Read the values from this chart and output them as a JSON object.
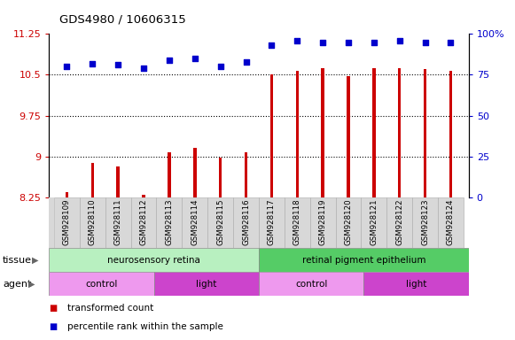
{
  "title": "GDS4980 / 10606315",
  "samples": [
    "GSM928109",
    "GSM928110",
    "GSM928111",
    "GSM928112",
    "GSM928113",
    "GSM928114",
    "GSM928115",
    "GSM928116",
    "GSM928117",
    "GSM928118",
    "GSM928119",
    "GSM928120",
    "GSM928121",
    "GSM928122",
    "GSM928123",
    "GSM928124"
  ],
  "bar_values": [
    8.35,
    8.88,
    8.82,
    8.3,
    9.07,
    9.15,
    8.97,
    9.07,
    10.5,
    10.58,
    10.62,
    10.47,
    10.62,
    10.62,
    10.6,
    10.57
  ],
  "dot_values": [
    80,
    82,
    81,
    79,
    84,
    85,
    80,
    83,
    93,
    96,
    95,
    95,
    95,
    96,
    95,
    95
  ],
  "bar_color": "#cc0000",
  "dot_color": "#0000cc",
  "ylim_left": [
    8.25,
    11.25
  ],
  "ylim_right": [
    0,
    100
  ],
  "yticks_left": [
    8.25,
    9.0,
    9.75,
    10.5,
    11.25
  ],
  "yticks_right": [
    0,
    25,
    50,
    75,
    100
  ],
  "ytick_labels_left": [
    "8.25",
    "9",
    "9.75",
    "10.5",
    "11.25"
  ],
  "ytick_labels_right": [
    "0",
    "25",
    "50",
    "75",
    "100%"
  ],
  "hlines": [
    9.0,
    9.75,
    10.5
  ],
  "tissue_groups": [
    {
      "label": "neurosensory retina",
      "start": 0,
      "end": 8,
      "color": "#b8f0c0"
    },
    {
      "label": "retinal pigment epithelium",
      "start": 8,
      "end": 16,
      "color": "#55cc66"
    }
  ],
  "agent_groups": [
    {
      "label": "control",
      "start": 0,
      "end": 4,
      "color": "#ee99ee"
    },
    {
      "label": "light",
      "start": 4,
      "end": 8,
      "color": "#cc44cc"
    },
    {
      "label": "control",
      "start": 8,
      "end": 12,
      "color": "#ee99ee"
    },
    {
      "label": "light",
      "start": 12,
      "end": 16,
      "color": "#cc44cc"
    }
  ],
  "legend_items": [
    {
      "label": "transformed count",
      "color": "#cc0000"
    },
    {
      "label": "percentile rank within the sample",
      "color": "#0000cc"
    }
  ],
  "bg_color": "#d8d8d8",
  "plot_bg": "#ffffff",
  "left_label_color": "#cc0000",
  "right_label_color": "#0000cc",
  "bar_width": 0.12
}
